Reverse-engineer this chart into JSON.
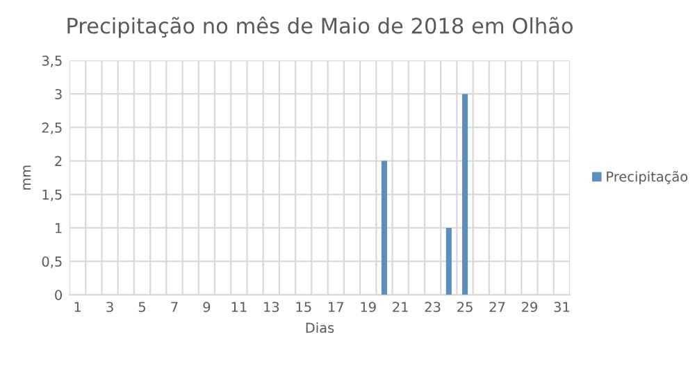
{
  "chart_data": {
    "type": "bar",
    "title": "Precipitação no mês de Maio de 2018 em Olhão",
    "xlabel": "Dias",
    "ylabel": "mm",
    "categories": [
      "1",
      null,
      "3",
      null,
      "5",
      null,
      "7",
      null,
      "9",
      null,
      "11",
      null,
      "13",
      null,
      "15",
      null,
      "17",
      null,
      "19",
      null,
      "21",
      null,
      "23",
      null,
      "25",
      null,
      "27",
      null,
      "29",
      null,
      "31"
    ],
    "series": [
      {
        "name": "Precipitação",
        "color": "#5b8fbe",
        "values": [
          0,
          0,
          0,
          0,
          0,
          0,
          0,
          0,
          0,
          0,
          0,
          0,
          0,
          0,
          0,
          0,
          0,
          0,
          0,
          2,
          0,
          0,
          0,
          1,
          3,
          0,
          0,
          0,
          0,
          0,
          0
        ]
      }
    ],
    "ylim": [
      0,
      3.5
    ],
    "yticks": [
      0,
      {
        "value": 0.5,
        "label": "0,5"
      },
      1,
      {
        "value": 1.5,
        "label": "1,5"
      },
      2,
      {
        "value": 2.5,
        "label": "2,5"
      },
      3,
      {
        "value": 3.5,
        "label": "3,5"
      }
    ],
    "grid": true,
    "legend": "right"
  }
}
